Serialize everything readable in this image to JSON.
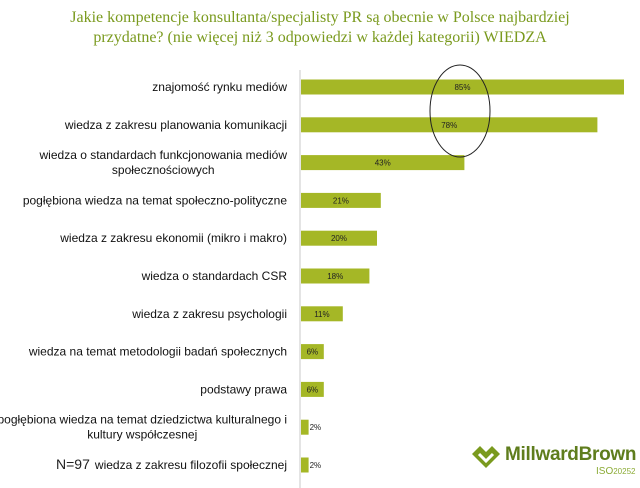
{
  "title_line1": "Jakie kompetencje konsultanta/specjalisty PR są obecnie w Polsce najbardziej",
  "title_line2": "przydatne? (nie więcej niż 3 odpowiedzi w każdej kategorii) WIEDZA",
  "n_label": "N=97",
  "logo": {
    "brand": "MillwardBrown",
    "iso": "ISO",
    "iso_num": "20252"
  },
  "colors": {
    "bar": "#a5b726",
    "title": "#7a9a1e",
    "ellipse": "#222222"
  },
  "chart_data": {
    "type": "bar",
    "orientation": "horizontal",
    "title": "Jakie kompetencje konsultanta/specjalisty PR są obecnie w Polsce najbardziej przydatne? (nie więcej niż 3 odpowiedzi w każdej kategorii) WIEDZA",
    "categories": [
      [
        "znajomość rynku mediów"
      ],
      [
        "wiedza z zakresu planowania komunikacji"
      ],
      [
        "wiedza o standardach funkcjonowania mediów",
        "społecznościowych"
      ],
      [
        "pogłębiona wiedza na temat społeczno-polityczne"
      ],
      [
        "wiedza z zakresu ekonomii (mikro i makro)"
      ],
      [
        "wiedza o standardach CSR"
      ],
      [
        "wiedza z zakresu psychologii"
      ],
      [
        "wiedza na temat metodologii badań społecznych"
      ],
      [
        "podstawy prawa"
      ],
      [
        "pogłębiona wiedza na temat dziedzictwa kulturalnego i",
        "kultury współczesnej"
      ],
      [
        "wiedza z zakresu filozofii społecznej"
      ]
    ],
    "values": [
      85,
      78,
      43,
      21,
      20,
      18,
      11,
      6,
      6,
      2,
      2
    ],
    "value_labels": [
      "85%",
      "78%",
      "43%",
      "21%",
      "20%",
      "18%",
      "11%",
      "6%",
      "6%",
      "2%",
      "2%"
    ],
    "xlim": [
      0,
      100
    ],
    "highlight": "ellipse around the top two bars",
    "grid": false,
    "legend": "none"
  }
}
